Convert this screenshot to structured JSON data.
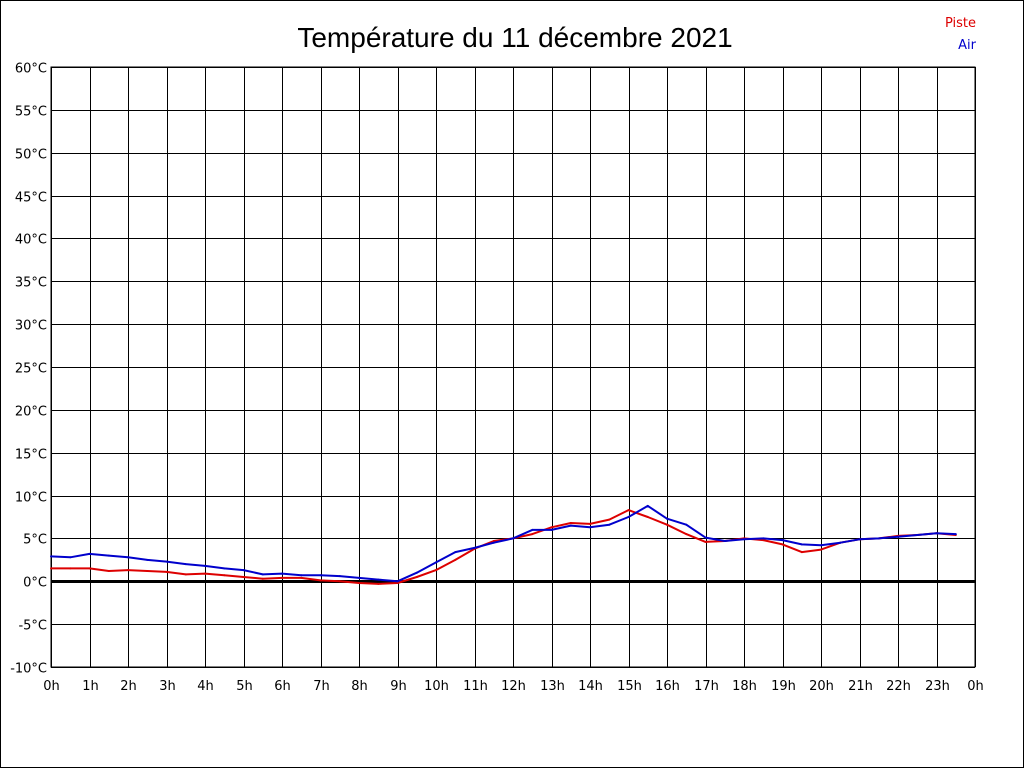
{
  "chart_data": {
    "type": "line",
    "title": "Température du 11 décembre 2021",
    "x_tick_labels": [
      "0h",
      "1h",
      "2h",
      "3h",
      "4h",
      "5h",
      "6h",
      "7h",
      "8h",
      "9h",
      "10h",
      "11h",
      "12h",
      "13h",
      "14h",
      "15h",
      "16h",
      "17h",
      "18h",
      "19h",
      "20h",
      "21h",
      "22h",
      "23h",
      "0h"
    ],
    "y_tick_labels": [
      "60°C",
      "55°C",
      "50°C",
      "45°C",
      "40°C",
      "35°C",
      "30°C",
      "25°C",
      "20°C",
      "15°C",
      "10°C",
      "5°C",
      "0°C",
      "-5°C",
      "-10°C"
    ],
    "xlim": [
      0,
      24
    ],
    "ylim": [
      -10,
      60
    ],
    "grid": true,
    "legend_position": "top-right",
    "series": [
      {
        "name": "Piste",
        "color": "#dd0000",
        "x": [
          0,
          0.5,
          1,
          1.5,
          2,
          2.5,
          3,
          3.5,
          4,
          4.5,
          5,
          5.5,
          6,
          6.5,
          7,
          7.5,
          8,
          8.5,
          9,
          9.5,
          10,
          10.5,
          11,
          11.5,
          12,
          12.5,
          13,
          13.5,
          14,
          14.5,
          15,
          15.5,
          16,
          16.5,
          17,
          17.5,
          18,
          18.5,
          19,
          19.5,
          20,
          20.5,
          21,
          21.5,
          22,
          22.5,
          23,
          23.5
        ],
        "values": [
          1.5,
          1.5,
          1.5,
          1.2,
          1.3,
          1.2,
          1.1,
          0.8,
          0.9,
          0.7,
          0.5,
          0.3,
          0.4,
          0.4,
          0.1,
          0.0,
          -0.2,
          -0.3,
          -0.2,
          0.5,
          1.3,
          2.5,
          3.8,
          4.7,
          5.0,
          5.5,
          6.3,
          6.8,
          6.7,
          7.2,
          8.3,
          7.5,
          6.6,
          5.5,
          4.6,
          4.7,
          5.0,
          4.8,
          4.3,
          3.4,
          3.7,
          4.5,
          4.9,
          5.0,
          5.3,
          5.4,
          5.6,
          5.4
        ]
      },
      {
        "name": "Air",
        "color": "#0000cc",
        "x": [
          0,
          0.5,
          1,
          1.5,
          2,
          2.5,
          3,
          3.5,
          4,
          4.5,
          5,
          5.5,
          6,
          6.5,
          7,
          7.5,
          8,
          8.5,
          9,
          9.5,
          10,
          10.5,
          11,
          11.5,
          12,
          12.5,
          13,
          13.5,
          14,
          14.5,
          15,
          15.5,
          16,
          16.5,
          17,
          17.5,
          18,
          18.5,
          19,
          19.5,
          20,
          20.5,
          21,
          21.5,
          22,
          22.5,
          23,
          23.5
        ],
        "values": [
          2.9,
          2.8,
          3.2,
          3.0,
          2.8,
          2.5,
          2.3,
          2.0,
          1.8,
          1.5,
          1.3,
          0.8,
          0.9,
          0.7,
          0.7,
          0.6,
          0.4,
          0.2,
          0.0,
          1.0,
          2.2,
          3.4,
          3.9,
          4.5,
          5.0,
          6.0,
          6.0,
          6.5,
          6.3,
          6.6,
          7.5,
          8.8,
          7.3,
          6.6,
          5.1,
          4.7,
          4.9,
          5.0,
          4.8,
          4.3,
          4.2,
          4.5,
          4.9,
          5.0,
          5.2,
          5.4,
          5.6,
          5.5
        ]
      }
    ]
  }
}
